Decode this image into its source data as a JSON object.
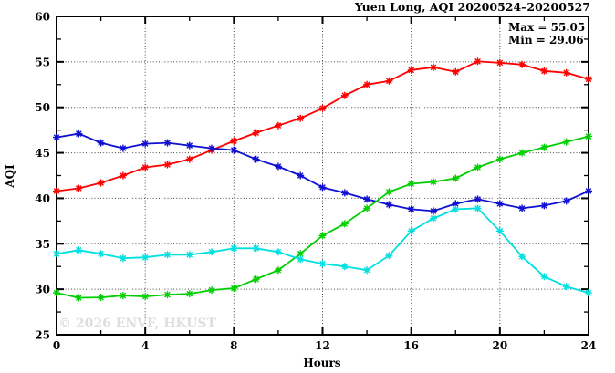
{
  "chart": {
    "title": "Yuen Long, AQI 20200524–20200527",
    "ylabel": "AQI",
    "xlabel": "Hours",
    "annotations": {
      "max": "Max = 55.05",
      "min": "Min = 29.06"
    },
    "watermark": "© 2026 ENVF, HKUST"
  },
  "chart_data": {
    "type": "line",
    "title": "Yuen Long, AQI 20200524–20200527",
    "xlabel": "Hours",
    "ylabel": "AQI",
    "xlim": [
      0,
      24
    ],
    "ylim": [
      25,
      60
    ],
    "x_major_ticks": [
      0,
      4,
      8,
      12,
      16,
      20,
      24
    ],
    "x_minor_step": 2,
    "y_major_ticks": [
      25,
      30,
      35,
      40,
      45,
      50,
      55,
      60
    ],
    "y_minor_step": 2.5,
    "x_gridlines": [
      4,
      8,
      12,
      16,
      20
    ],
    "y_gridlines": [
      30,
      35,
      40,
      45,
      50,
      55
    ],
    "grid_style": "dotted",
    "legend_position": "none",
    "max_value": 55.05,
    "min_value": 29.06,
    "marker": "asterisk",
    "x": [
      0,
      1,
      2,
      3,
      4,
      5,
      6,
      7,
      8,
      9,
      10,
      11,
      12,
      13,
      14,
      15,
      16,
      17,
      18,
      19,
      20,
      21,
      22,
      23,
      24
    ],
    "series": [
      {
        "name": "red-series",
        "color": "#ff0000",
        "values": [
          40.8,
          41.1,
          41.7,
          42.5,
          43.4,
          43.7,
          44.3,
          45.3,
          46.3,
          47.2,
          48.0,
          48.8,
          49.9,
          51.3,
          52.5,
          52.9,
          54.1,
          54.4,
          53.9,
          55.05,
          54.9,
          54.7,
          54.0,
          53.8,
          53.1
        ]
      },
      {
        "name": "blue-series",
        "color": "#0f0fd2",
        "values": [
          46.7,
          47.1,
          46.1,
          45.5,
          46.0,
          46.1,
          45.8,
          45.5,
          45.3,
          44.3,
          43.5,
          42.5,
          41.2,
          40.6,
          39.9,
          39.3,
          38.8,
          38.6,
          39.4,
          39.9,
          39.4,
          38.9,
          39.2,
          39.7,
          40.8
        ]
      },
      {
        "name": "green-series",
        "color": "#00cf00",
        "values": [
          29.6,
          29.06,
          29.1,
          29.3,
          29.2,
          29.4,
          29.5,
          29.9,
          30.1,
          31.1,
          32.1,
          33.9,
          35.9,
          37.2,
          38.9,
          40.7,
          41.6,
          41.8,
          42.2,
          43.4,
          44.3,
          45.0,
          45.6,
          46.2,
          46.8
        ]
      },
      {
        "name": "cyan-series",
        "color": "#00e0e0",
        "values": [
          33.9,
          34.3,
          33.9,
          33.4,
          33.5,
          33.8,
          33.8,
          34.1,
          34.5,
          34.5,
          34.1,
          33.3,
          32.8,
          32.5,
          32.1,
          33.7,
          36.4,
          37.8,
          38.8,
          38.9,
          36.4,
          33.6,
          31.4,
          30.3,
          29.6
        ]
      }
    ]
  }
}
